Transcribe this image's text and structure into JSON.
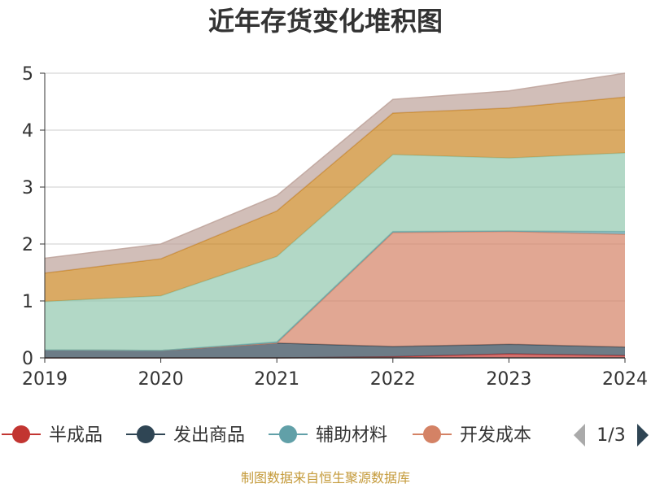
{
  "chart_data": {
    "type": "area",
    "stacked": true,
    "title": "近年存货变化堆积图",
    "x": [
      "2019",
      "2020",
      "2021",
      "2022",
      "2023",
      "2024"
    ],
    "ylim": [
      0,
      5
    ],
    "yticks": [
      "0",
      "1",
      "2",
      "3",
      "4",
      "5"
    ],
    "grid": true,
    "legend_position": "bottom",
    "series": [
      {
        "name": "半成品",
        "color": "#c23531",
        "values": [
          0.0,
          0.0,
          0.0,
          0.02,
          0.07,
          0.04
        ]
      },
      {
        "name": "发出商品",
        "color": "#2f4554",
        "values": [
          0.14,
          0.13,
          0.26,
          0.18,
          0.17,
          0.15
        ]
      },
      {
        "name": "开发成本",
        "color": "#d48265",
        "values": [
          0.0,
          0.0,
          0.0,
          2.0,
          1.98,
          1.98
        ]
      },
      {
        "name": "辅助材料",
        "color": "#61a0a8",
        "values": [
          0.0,
          0.0,
          0.02,
          0.02,
          0.01,
          0.05
        ]
      },
      {
        "name": "",
        "color": "#91c7ae",
        "values": [
          0.85,
          0.96,
          1.5,
          1.35,
          1.28,
          1.38
        ]
      },
      {
        "name": "",
        "color": "#ca8622",
        "values": [
          0.5,
          0.65,
          0.8,
          0.73,
          0.88,
          0.98
        ]
      },
      {
        "name": "",
        "color": "#bda29a",
        "values": [
          0.26,
          0.26,
          0.27,
          0.24,
          0.3,
          0.42
        ]
      }
    ]
  },
  "legend": {
    "items": [
      {
        "label": "半成品",
        "color": "#c23531"
      },
      {
        "label": "发出商品",
        "color": "#2f4554"
      },
      {
        "label": "辅助材料",
        "color": "#61a0a8"
      },
      {
        "label": "开发成本",
        "color": "#d48265"
      }
    ],
    "page_indicator": "1/3"
  },
  "source_note": "制图数据来自恒生聚源数据库"
}
